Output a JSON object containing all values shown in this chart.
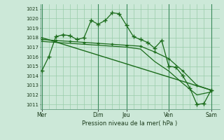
{
  "background_color": "#cce8d8",
  "grid_color": "#99ccaa",
  "line_color": "#1a6b1a",
  "xlabel_text": "Pression niveau de la mer( hPa )",
  "x_ticks_labels": [
    "Mer",
    "Dim",
    "Jeu",
    "Ven",
    "Sam"
  ],
  "x_ticks_pos": [
    0,
    4,
    6,
    9,
    12
  ],
  "xlim": [
    -0.1,
    12.6
  ],
  "ylim": [
    1010.5,
    1021.5
  ],
  "yticks": [
    1011,
    1012,
    1013,
    1014,
    1015,
    1016,
    1017,
    1018,
    1019,
    1020,
    1021
  ],
  "vline_x": [
    0,
    4,
    6,
    9,
    12
  ],
  "line1_x": [
    0,
    0.5,
    1,
    1.5,
    2,
    2.5,
    3,
    3.5,
    4,
    4.5,
    5,
    5.5,
    6,
    6.5,
    7,
    7.5,
    8,
    8.5,
    9,
    9.5,
    10,
    10.5,
    11,
    11.5,
    12
  ],
  "line1_y": [
    1014.5,
    1016.0,
    1018.1,
    1018.3,
    1018.2,
    1017.8,
    1018.0,
    1019.8,
    1019.4,
    1019.8,
    1020.6,
    1020.5,
    1019.3,
    1018.1,
    1017.8,
    1017.5,
    1016.9,
    1017.7,
    1015.0,
    1014.9,
    1014.0,
    1012.7,
    1011.0,
    1011.1,
    1012.5
  ],
  "line2_x": [
    0,
    1,
    2,
    3,
    4,
    5,
    6,
    7,
    8,
    9,
    10,
    11,
    12
  ],
  "line2_y": [
    1017.8,
    1017.7,
    1017.6,
    1017.5,
    1017.4,
    1017.3,
    1017.2,
    1017.1,
    1016.5,
    1015.8,
    1014.5,
    1013.0,
    1012.5
  ],
  "line3_x": [
    0,
    1,
    2,
    3,
    4,
    5,
    6,
    7,
    8,
    9,
    10,
    11,
    12
  ],
  "line3_y": [
    1017.6,
    1017.5,
    1017.4,
    1017.3,
    1017.2,
    1017.1,
    1017.0,
    1016.8,
    1015.5,
    1014.5,
    1013.2,
    1012.0,
    1012.3
  ],
  "line4_x": [
    0,
    12
  ],
  "line4_y": [
    1018.0,
    1012.5
  ]
}
